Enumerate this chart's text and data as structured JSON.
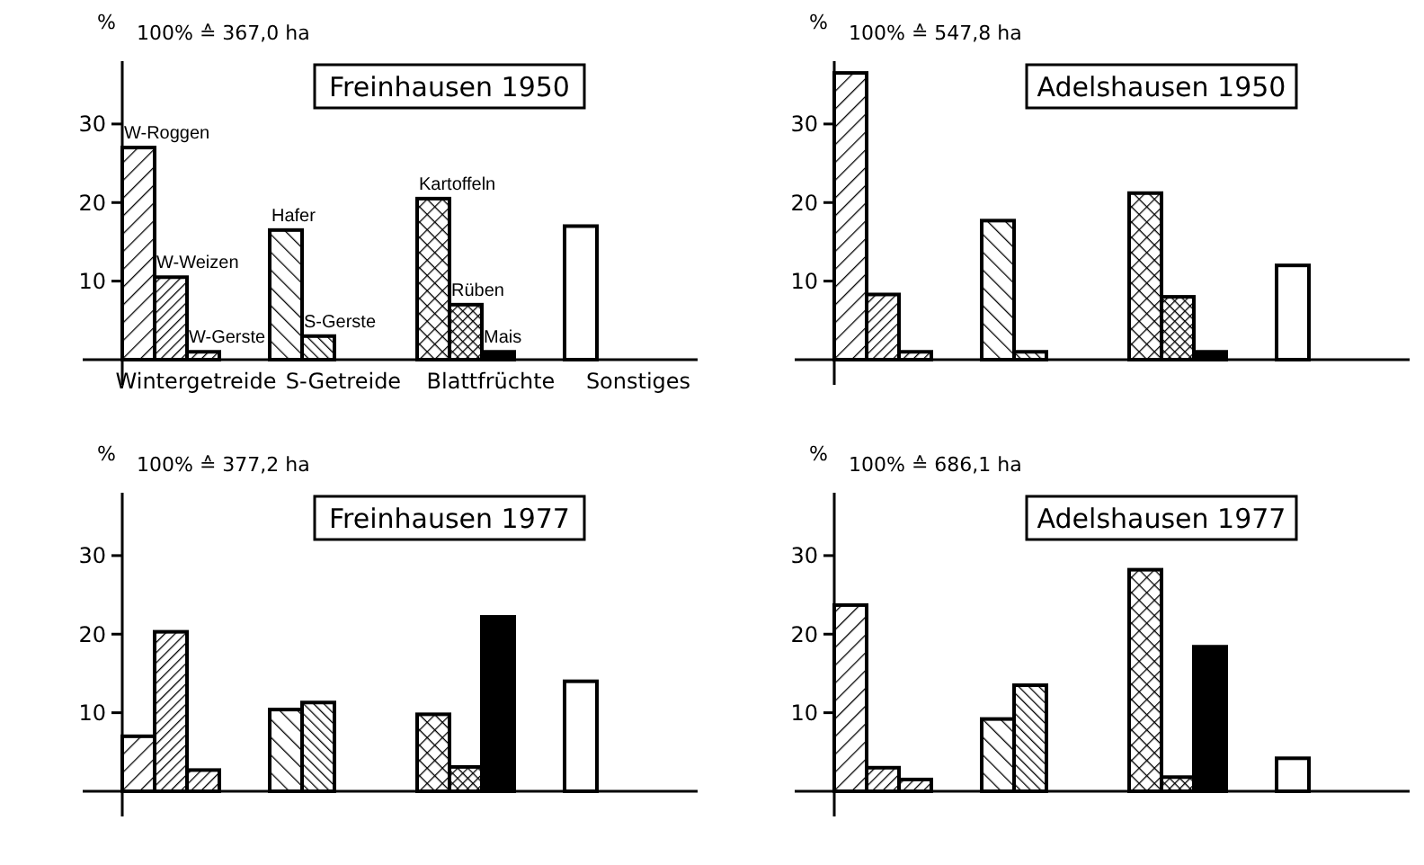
{
  "chart_data": [
    {
      "type": "bar",
      "title": "Freinhausen 1950",
      "ylabel": "%",
      "categories": [
        "Wintergetreide",
        "S-Getreide",
        "Blattfrüchte",
        "Sonstiges"
      ],
      "series": [
        {
          "colors": [
            "#000000",
            "#000000",
            "#000000",
            "#ffffff"
          ],
          "values": [
            27,
            16.5,
            20.5,
            17
          ]
        },
        {
          "colors": [
            "#000000",
            "#000000",
            "#000000",
            null
          ],
          "values": [
            10.5,
            3,
            7,
            null
          ]
        },
        {
          "colors": [
            "#000000",
            null,
            "#000000",
            null
          ],
          "values": [
            1,
            null,
            1,
            null
          ]
        }
      ],
      "ylim": [
        0,
        38
      ],
      "yticks": [
        10,
        20,
        30
      ],
      "annotations": [
        "100% ≙ 367,0 ha",
        "W-Roggen",
        "W-Weizen",
        "W-Gerste",
        "Hafer",
        "S-Gerste",
        "Kartoffeln",
        "Rüben",
        "Mais"
      ]
    },
    {
      "type": "bar",
      "title": "Adelshausen 1950",
      "ylabel": "%",
      "categories": [
        null,
        null,
        null,
        null
      ],
      "series": [
        {
          "colors": [
            "#000000",
            "#000000",
            "#000000",
            "#ffffff"
          ],
          "values": [
            36.5,
            17.7,
            21.2,
            12
          ]
        },
        {
          "colors": [
            "#000000",
            "#000000",
            "#000000",
            null
          ],
          "values": [
            8.3,
            1,
            8,
            null
          ]
        },
        {
          "colors": [
            "#000000",
            null,
            "#000000",
            null
          ],
          "values": [
            1,
            null,
            1,
            null
          ]
        }
      ],
      "ylim": [
        0,
        38
      ],
      "yticks": [
        10,
        20,
        30
      ],
      "tick_labels": "y",
      "annotations": [
        "100% ≙ 547,8 ha"
      ]
    },
    {
      "type": "bar",
      "title": "Freinhausen 1977",
      "ylabel": "%",
      "categories": [
        null,
        null,
        null,
        null
      ],
      "series": [
        {
          "colors": [
            "#000000",
            "#000000",
            "#000000",
            "#ffffff"
          ],
          "values": [
            7,
            10.4,
            9.8,
            14
          ]
        },
        {
          "colors": [
            "#000000",
            "#000000",
            "#000000",
            null
          ],
          "values": [
            20.3,
            11.3,
            3.1,
            null
          ]
        },
        {
          "colors": [
            "#000000",
            null,
            "#000000",
            null
          ],
          "values": [
            2.7,
            null,
            22.2,
            null
          ]
        }
      ],
      "ylim": [
        0,
        38
      ],
      "yticks": [
        10,
        20,
        30
      ],
      "tick_labels": "y",
      "annotations": [
        "100% ≙ 377,2 ha"
      ]
    },
    {
      "type": "bar",
      "title": "Adelshausen 1977",
      "ylabel": "%",
      "categories": [
        null,
        null,
        null,
        null
      ],
      "series": [
        {
          "colors": [
            "#000000",
            "#000000",
            "#000000",
            "#ffffff"
          ],
          "values": [
            23.7,
            9.2,
            28.2,
            4.2
          ]
        },
        {
          "colors": [
            "#000000",
            "#000000",
            "#000000",
            null
          ],
          "values": [
            3,
            13.5,
            1.8,
            null
          ]
        },
        {
          "colors": [
            "#000000",
            null,
            "#000000",
            null
          ],
          "values": [
            1.5,
            null,
            18.4,
            null
          ]
        }
      ],
      "ylim": [
        0,
        38
      ],
      "yticks": [
        10,
        20,
        30
      ],
      "tick_labels": "y",
      "annotations": [
        "100% ≙ 686,1 ha"
      ]
    }
  ]
}
